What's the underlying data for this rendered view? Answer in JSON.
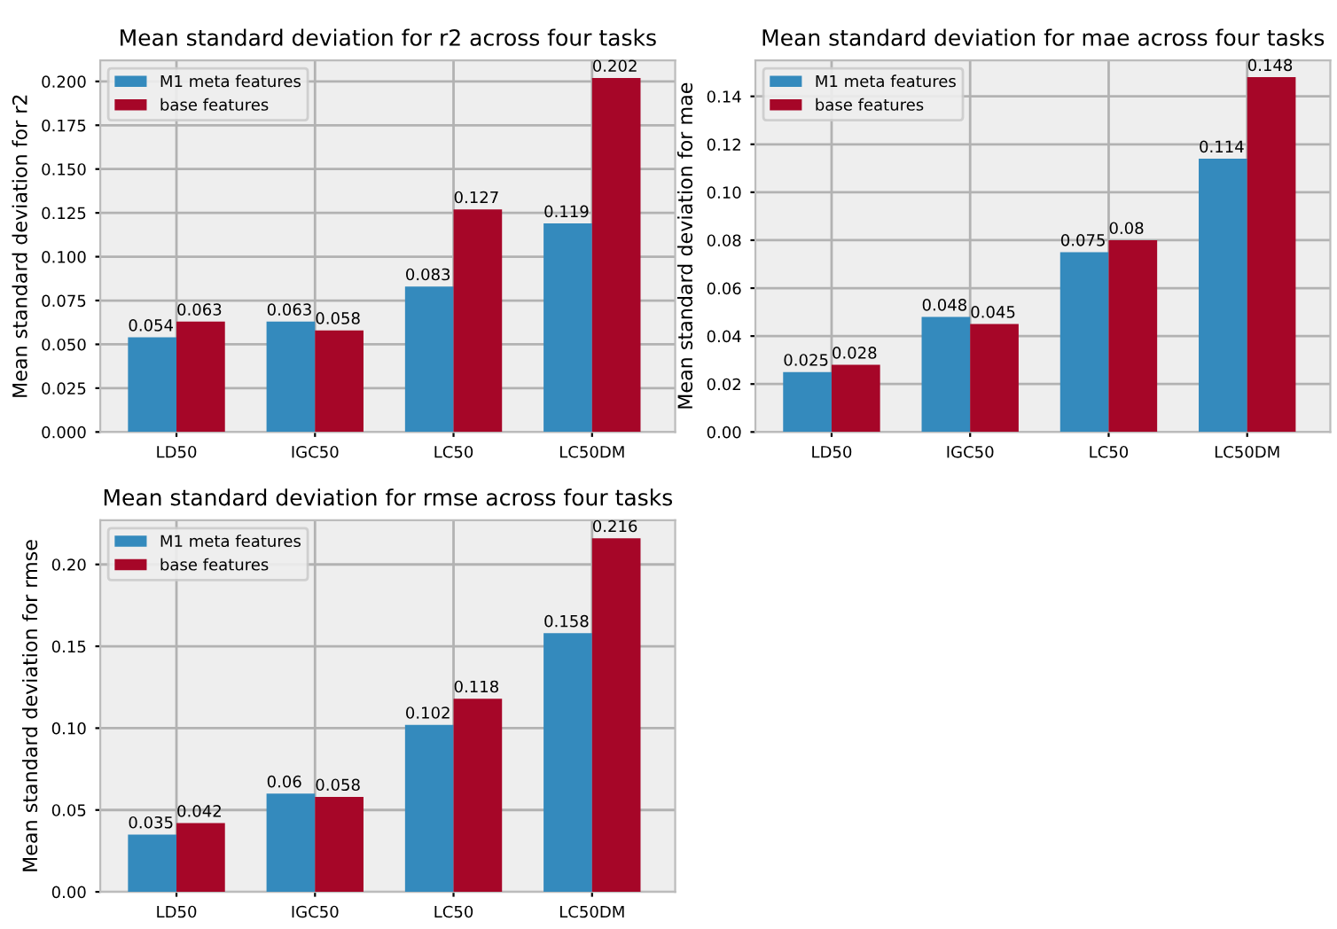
{
  "chart_data": [
    {
      "type": "bar",
      "title": "Mean standard deviation for r2 across four tasks",
      "ylabel": "Mean standard deviation for r2",
      "categories": [
        "LD50",
        "IGC50",
        "LC50",
        "LC50DM"
      ],
      "series": [
        {
          "name": "M1 meta features",
          "color": "#348abd",
          "values": [
            0.054,
            0.063,
            0.083,
            0.119
          ]
        },
        {
          "name": "base features",
          "color": "#a60628",
          "values": [
            0.063,
            0.058,
            0.127,
            0.202
          ]
        }
      ],
      "data_labels": true,
      "ylim": [
        0,
        0.212
      ],
      "yticks": [
        {
          "value": 0,
          "label": "0.000"
        },
        0.025,
        {
          "value": 0.05,
          "label": "0.050"
        },
        0.075,
        {
          "value": 0.1,
          "label": "0.100"
        },
        0.125,
        {
          "value": 0.15,
          "label": "0.150"
        },
        0.175,
        {
          "value": 0.2,
          "label": "0.200"
        }
      ],
      "grid": true,
      "legend": "top left"
    },
    {
      "type": "bar",
      "title": "Mean standard deviation for mae across four tasks",
      "ylabel": "Mean standard deviation for mae",
      "categories": [
        "LD50",
        "IGC50",
        "LC50",
        "LC50DM"
      ],
      "series": [
        {
          "name": "M1 meta features",
          "color": "#348abd",
          "values": [
            0.025,
            0.048,
            0.075,
            0.114
          ]
        },
        {
          "name": "base features",
          "color": "#a60628",
          "values": [
            0.028,
            0.045,
            0.08,
            0.148
          ]
        }
      ],
      "data_labels": true,
      "ylim": [
        0,
        0.155
      ],
      "yticks": [
        {
          "value": 0,
          "label": "0.00"
        },
        0.02,
        0.04,
        0.06,
        0.08,
        {
          "value": 0.1,
          "label": "0.10"
        },
        0.12,
        0.14
      ],
      "grid": true,
      "legend": "top left"
    },
    {
      "type": "bar",
      "title": "Mean standard deviation for rmse across four tasks",
      "ylabel": "Mean standard deviation for rmse",
      "categories": [
        "LD50",
        "IGC50",
        "LC50",
        "LC50DM"
      ],
      "series": [
        {
          "name": "M1 meta features",
          "color": "#348abd",
          "values": [
            0.035,
            0.06,
            0.102,
            0.158
          ]
        },
        {
          "name": "base features",
          "color": "#a60628",
          "values": [
            0.042,
            0.058,
            0.118,
            0.216
          ]
        }
      ],
      "data_labels": true,
      "ylim": [
        0,
        0.227
      ],
      "yticks": [
        {
          "value": 0,
          "label": "0.00"
        },
        0.05,
        {
          "value": 0.1,
          "label": "0.10"
        },
        0.15,
        {
          "value": 0.2,
          "label": "0.20"
        }
      ],
      "grid": true,
      "legend": "top left"
    }
  ]
}
